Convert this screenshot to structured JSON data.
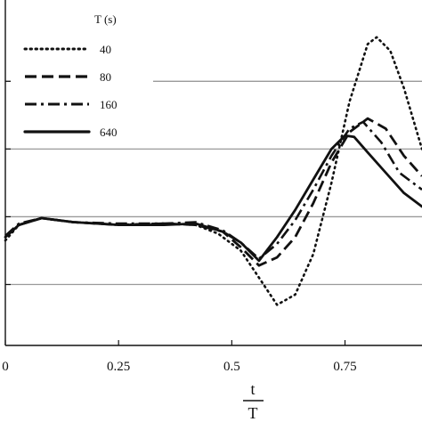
{
  "chart_data": {
    "type": "line",
    "xlabel_numerator": "t",
    "xlabel_denominator": "T",
    "xlim": [
      0,
      0.92
    ],
    "ylim": [
      -1.9,
      3.2
    ],
    "x_ticks": [
      {
        "value": 0,
        "label": "0"
      },
      {
        "value": 0.25,
        "label": "0.25"
      },
      {
        "value": 0.5,
        "label": "0.5"
      },
      {
        "value": 0.75,
        "label": "0.75"
      }
    ],
    "y_gridlines": [
      -1,
      0,
      1,
      2
    ],
    "grid": "horizontal",
    "legend": {
      "title": "T (s)",
      "placement": "top-left"
    },
    "series": [
      {
        "name": "40",
        "style": "dotted",
        "points": [
          [
            0,
            -0.35
          ],
          [
            0.03,
            -0.12
          ],
          [
            0.08,
            -0.02
          ],
          [
            0.15,
            -0.08
          ],
          [
            0.25,
            -0.12
          ],
          [
            0.35,
            -0.1
          ],
          [
            0.42,
            -0.12
          ],
          [
            0.47,
            -0.25
          ],
          [
            0.52,
            -0.5
          ],
          [
            0.56,
            -0.9
          ],
          [
            0.6,
            -1.3
          ],
          [
            0.64,
            -1.15
          ],
          [
            0.68,
            -0.55
          ],
          [
            0.72,
            0.5
          ],
          [
            0.76,
            1.7
          ],
          [
            0.8,
            2.55
          ],
          [
            0.82,
            2.65
          ],
          [
            0.85,
            2.45
          ],
          [
            0.88,
            1.9
          ],
          [
            0.92,
            1.0
          ]
        ]
      },
      {
        "name": "80",
        "style": "dashed",
        "points": [
          [
            0,
            -0.3
          ],
          [
            0.03,
            -0.12
          ],
          [
            0.08,
            -0.02
          ],
          [
            0.15,
            -0.08
          ],
          [
            0.25,
            -0.12
          ],
          [
            0.35,
            -0.1
          ],
          [
            0.42,
            -0.12
          ],
          [
            0.48,
            -0.22
          ],
          [
            0.52,
            -0.45
          ],
          [
            0.56,
            -0.72
          ],
          [
            0.6,
            -0.6
          ],
          [
            0.64,
            -0.3
          ],
          [
            0.68,
            0.2
          ],
          [
            0.72,
            0.8
          ],
          [
            0.76,
            1.25
          ],
          [
            0.8,
            1.45
          ],
          [
            0.84,
            1.3
          ],
          [
            0.88,
            0.9
          ],
          [
            0.92,
            0.6
          ]
        ]
      },
      {
        "name": "160",
        "style": "dash-dot",
        "points": [
          [
            0,
            -0.28
          ],
          [
            0.03,
            -0.1
          ],
          [
            0.08,
            -0.02
          ],
          [
            0.15,
            -0.08
          ],
          [
            0.25,
            -0.1
          ],
          [
            0.35,
            -0.1
          ],
          [
            0.42,
            -0.08
          ],
          [
            0.48,
            -0.2
          ],
          [
            0.52,
            -0.38
          ],
          [
            0.56,
            -0.62
          ],
          [
            0.6,
            -0.4
          ],
          [
            0.64,
            -0.05
          ],
          [
            0.68,
            0.4
          ],
          [
            0.72,
            0.9
          ],
          [
            0.76,
            1.3
          ],
          [
            0.79,
            1.4
          ],
          [
            0.83,
            1.1
          ],
          [
            0.87,
            0.65
          ],
          [
            0.92,
            0.4
          ]
        ]
      },
      {
        "name": "640",
        "style": "solid",
        "points": [
          [
            0,
            -0.3
          ],
          [
            0.03,
            -0.12
          ],
          [
            0.08,
            -0.02
          ],
          [
            0.15,
            -0.08
          ],
          [
            0.25,
            -0.12
          ],
          [
            0.35,
            -0.12
          ],
          [
            0.42,
            -0.1
          ],
          [
            0.48,
            -0.22
          ],
          [
            0.52,
            -0.38
          ],
          [
            0.56,
            -0.65
          ],
          [
            0.6,
            -0.3
          ],
          [
            0.64,
            0.1
          ],
          [
            0.68,
            0.55
          ],
          [
            0.72,
            1.0
          ],
          [
            0.75,
            1.2
          ],
          [
            0.77,
            1.18
          ],
          [
            0.8,
            0.95
          ],
          [
            0.84,
            0.65
          ],
          [
            0.88,
            0.35
          ],
          [
            0.92,
            0.15
          ]
        ]
      }
    ]
  }
}
